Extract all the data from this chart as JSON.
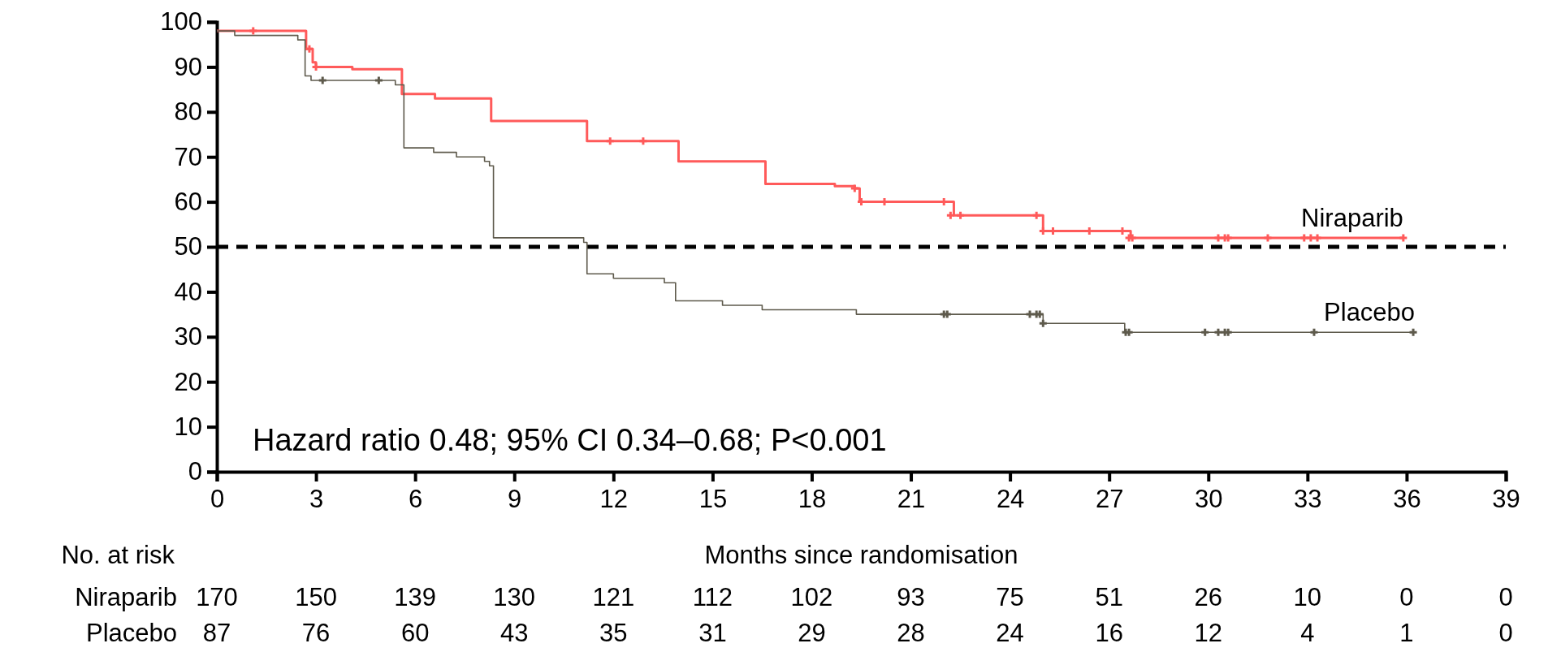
{
  "chart_data": [
    {
      "type": "step",
      "xlabel": "Months since randomisation",
      "xlim": [
        0,
        39
      ],
      "xticks": [
        0,
        3,
        6,
        9,
        12,
        15,
        18,
        21,
        24,
        27,
        30,
        33,
        36,
        39
      ],
      "ylim": [
        0,
        100
      ],
      "yticks": [
        0,
        10,
        20,
        30,
        40,
        50,
        60,
        70,
        80,
        90,
        100
      ],
      "legend": false,
      "grid": false,
      "line_style": "solid",
      "series": [
        {
          "name": "Niraparib",
          "color": "#ff5a5a",
          "x": [
            0,
            2.57,
            2.7,
            2.9,
            3.0,
            4.1,
            5.35,
            5.6,
            6.6,
            8.1,
            8.3,
            10.7,
            11.2,
            13.7,
            13.97,
            15.97,
            16.6,
            17.3,
            18.7,
            19.3,
            19.45,
            22.1,
            22.3,
            24.8,
            25.0,
            27.65,
            35.9
          ],
          "values": [
            98,
            98,
            94,
            91,
            90,
            89.5,
            89.5,
            84,
            83,
            83,
            78,
            78,
            73.5,
            73.5,
            69,
            69,
            64,
            64,
            63.5,
            63,
            60,
            60,
            57,
            57,
            53.5,
            52,
            52
          ]
        },
        {
          "name": "Placebo",
          "color": "#5e5a4c",
          "x": [
            0,
            0.54,
            2.45,
            2.67,
            2.85,
            5.26,
            5.4,
            5.66,
            6.56,
            7.25,
            8.1,
            8.25,
            8.37,
            10.8,
            11.1,
            11.2,
            12.0,
            13.54,
            13.88,
            15.3,
            16.5,
            19.35,
            25.0,
            27.47,
            36.25
          ],
          "values": [
            98,
            97,
            96,
            88,
            87,
            87,
            86,
            72,
            71,
            70,
            69,
            68,
            52,
            52,
            51,
            44,
            43,
            42,
            38,
            37,
            36,
            35,
            33,
            31,
            31
          ]
        },
        {
          "type": "scatter",
          "marker": "cross",
          "color": "#ff5a5a",
          "x": [
            1.1,
            2.8,
            3.0,
            11.9,
            12.9,
            19.3,
            19.5,
            20.2,
            22.0,
            22.2,
            22.5,
            24.8,
            25.0,
            25.3,
            26.4,
            27.4,
            27.6,
            27.7,
            30.3,
            30.5,
            30.6,
            31.8,
            32.9,
            33.1,
            33.3,
            35.9
          ],
          "values": [
            98,
            94,
            90,
            73.5,
            73.5,
            63,
            60,
            60,
            60,
            57,
            57,
            57,
            53.5,
            53.5,
            53.5,
            53.5,
            52,
            52,
            52,
            52,
            52,
            52,
            52,
            52,
            52,
            52
          ]
        },
        {
          "type": "scatter",
          "marker": "cross",
          "color": "#5e5a4c",
          "x": [
            3.2,
            4.9,
            22.0,
            22.1,
            24.6,
            24.8,
            24.9,
            25.0,
            27.5,
            27.6,
            29.9,
            30.3,
            30.5,
            30.6,
            33.2,
            36.2
          ],
          "values": [
            87,
            87,
            35,
            35,
            35,
            35,
            35,
            33,
            31,
            31,
            31,
            31,
            31,
            31,
            31,
            31
          ]
        }
      ],
      "ref_lines": [
        {
          "axis": "y",
          "value": 50,
          "line_style": "dashed",
          "color": "#000000"
        }
      ],
      "annotations": [
        {
          "text": "Hazard ratio 0.48; 95% CI 0.34–0.68; P<0.001"
        }
      ]
    },
    {
      "type": "heatmap",
      "title": "No. at risk",
      "data_labels": true,
      "categories": [
        null,
        null,
        null,
        null,
        null,
        null,
        null,
        null,
        null,
        null,
        null,
        null,
        null,
        null
      ],
      "y_categories": [
        "Niraparib",
        "Placebo"
      ],
      "cells": [
        [
          170,
          150,
          139,
          130,
          121,
          112,
          102,
          93,
          75,
          51,
          26,
          10,
          0,
          0
        ],
        [
          87,
          76,
          60,
          43,
          35,
          31,
          29,
          28,
          24,
          16,
          12,
          4,
          1,
          0
        ]
      ]
    }
  ]
}
